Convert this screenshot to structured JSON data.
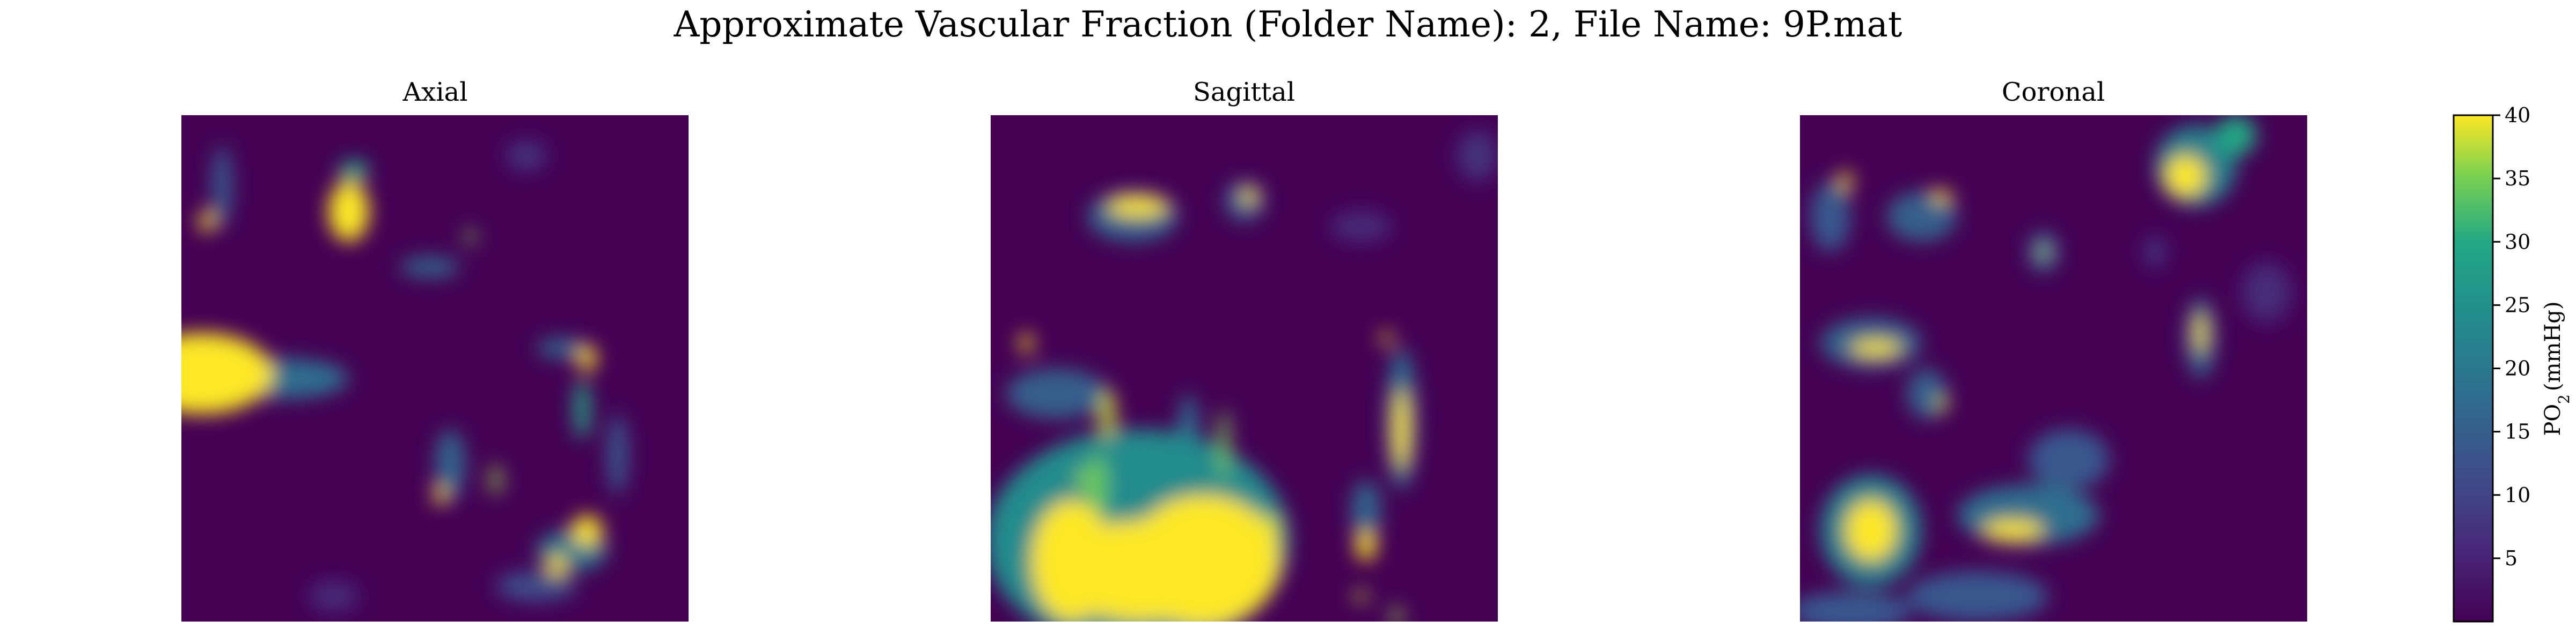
{
  "figure": {
    "title": "Approximate Vascular Fraction (Folder Name): 2, File Name: 9P.mat"
  },
  "chart_data": {
    "type": "heatmap",
    "panels": [
      {
        "title": "Axial",
        "blobs": [
          {
            "x": 0.33,
            "y": 0.19,
            "rx": 0.04,
            "ry": 0.06,
            "v": 40
          },
          {
            "x": 0.34,
            "y": 0.11,
            "rx": 0.03,
            "ry": 0.02,
            "v": 30
          },
          {
            "x": 0.04,
            "y": 0.51,
            "rx": 0.14,
            "ry": 0.08,
            "v": 40
          },
          {
            "x": 0.2,
            "y": 0.52,
            "rx": 0.13,
            "ry": 0.04,
            "v": 18
          },
          {
            "x": 0.05,
            "y": 0.21,
            "rx": 0.015,
            "ry": 0.02,
            "v": 40
          },
          {
            "x": 0.08,
            "y": 0.14,
            "rx": 0.02,
            "ry": 0.08,
            "v": 14
          },
          {
            "x": 0.57,
            "y": 0.24,
            "rx": 0.012,
            "ry": 0.012,
            "v": 35
          },
          {
            "x": 0.49,
            "y": 0.3,
            "rx": 0.06,
            "ry": 0.02,
            "v": 16
          },
          {
            "x": 0.8,
            "y": 0.48,
            "rx": 0.018,
            "ry": 0.025,
            "v": 40
          },
          {
            "x": 0.79,
            "y": 0.58,
            "rx": 0.015,
            "ry": 0.06,
            "v": 30
          },
          {
            "x": 0.75,
            "y": 0.46,
            "rx": 0.05,
            "ry": 0.02,
            "v": 16
          },
          {
            "x": 0.51,
            "y": 0.75,
            "rx": 0.012,
            "ry": 0.02,
            "v": 40
          },
          {
            "x": 0.62,
            "y": 0.72,
            "rx": 0.01,
            "ry": 0.03,
            "v": 36
          },
          {
            "x": 0.53,
            "y": 0.69,
            "rx": 0.03,
            "ry": 0.07,
            "v": 16
          },
          {
            "x": 0.8,
            "y": 0.82,
            "rx": 0.03,
            "ry": 0.03,
            "v": 40
          },
          {
            "x": 0.74,
            "y": 0.89,
            "rx": 0.02,
            "ry": 0.02,
            "v": 40
          },
          {
            "x": 0.77,
            "y": 0.86,
            "rx": 0.07,
            "ry": 0.04,
            "v": 20
          },
          {
            "x": 0.86,
            "y": 0.67,
            "rx": 0.02,
            "ry": 0.08,
            "v": 14
          },
          {
            "x": 0.7,
            "y": 0.93,
            "rx": 0.08,
            "ry": 0.03,
            "v": 12
          },
          {
            "x": 0.68,
            "y": 0.08,
            "rx": 0.04,
            "ry": 0.03,
            "v": 7
          },
          {
            "x": 0.3,
            "y": 0.95,
            "rx": 0.05,
            "ry": 0.03,
            "v": 6
          }
        ]
      },
      {
        "title": "Sagittal",
        "blobs": [
          {
            "x": 0.29,
            "y": 0.18,
            "rx": 0.06,
            "ry": 0.02,
            "v": 40
          },
          {
            "x": 0.28,
            "y": 0.2,
            "rx": 0.09,
            "ry": 0.05,
            "v": 16
          },
          {
            "x": 0.51,
            "y": 0.16,
            "rx": 0.015,
            "ry": 0.015,
            "v": 40
          },
          {
            "x": 0.5,
            "y": 0.17,
            "rx": 0.04,
            "ry": 0.04,
            "v": 14
          },
          {
            "x": 0.07,
            "y": 0.45,
            "rx": 0.012,
            "ry": 0.02,
            "v": 40
          },
          {
            "x": 0.13,
            "y": 0.55,
            "rx": 0.1,
            "ry": 0.05,
            "v": 15
          },
          {
            "x": 0.23,
            "y": 0.59,
            "rx": 0.015,
            "ry": 0.05,
            "v": 38
          },
          {
            "x": 0.46,
            "y": 0.65,
            "rx": 0.01,
            "ry": 0.07,
            "v": 35
          },
          {
            "x": 0.39,
            "y": 0.63,
            "rx": 0.02,
            "ry": 0.08,
            "v": 18
          },
          {
            "x": 0.78,
            "y": 0.44,
            "rx": 0.012,
            "ry": 0.012,
            "v": 40
          },
          {
            "x": 0.81,
            "y": 0.62,
            "rx": 0.015,
            "ry": 0.08,
            "v": 40
          },
          {
            "x": 0.81,
            "y": 0.6,
            "rx": 0.03,
            "ry": 0.14,
            "v": 18
          },
          {
            "x": 0.74,
            "y": 0.78,
            "rx": 0.03,
            "ry": 0.06,
            "v": 16
          },
          {
            "x": 0.74,
            "y": 0.85,
            "rx": 0.02,
            "ry": 0.03,
            "v": 40
          },
          {
            "x": 0.73,
            "y": 0.95,
            "rx": 0.012,
            "ry": 0.012,
            "v": 38
          },
          {
            "x": 0.8,
            "y": 0.99,
            "rx": 0.01,
            "ry": 0.02,
            "v": 36
          },
          {
            "x": 0.16,
            "y": 0.88,
            "rx": 0.08,
            "ry": 0.12,
            "v": 40
          },
          {
            "x": 0.42,
            "y": 0.88,
            "rx": 0.15,
            "ry": 0.13,
            "v": 40
          },
          {
            "x": 0.29,
            "y": 0.84,
            "rx": 0.3,
            "ry": 0.22,
            "v": 24
          },
          {
            "x": 0.21,
            "y": 0.73,
            "rx": 0.02,
            "ry": 0.06,
            "v": 34
          },
          {
            "x": 0.18,
            "y": 0.72,
            "rx": 0.01,
            "ry": 0.02,
            "v": 36
          },
          {
            "x": 0.55,
            "y": 0.82,
            "rx": 0.02,
            "ry": 0.03,
            "v": 38
          },
          {
            "x": 0.3,
            "y": 0.9,
            "rx": 0.18,
            "ry": 0.1,
            "v": 40
          },
          {
            "x": 0.73,
            "y": 0.22,
            "rx": 0.06,
            "ry": 0.03,
            "v": 6
          },
          {
            "x": 0.96,
            "y": 0.08,
            "rx": 0.04,
            "ry": 0.05,
            "v": 7
          }
        ]
      },
      {
        "title": "Coronal",
        "blobs": [
          {
            "x": 0.76,
            "y": 0.12,
            "rx": 0.04,
            "ry": 0.04,
            "v": 40
          },
          {
            "x": 0.78,
            "y": 0.1,
            "rx": 0.08,
            "ry": 0.08,
            "v": 22
          },
          {
            "x": 0.86,
            "y": 0.04,
            "rx": 0.04,
            "ry": 0.04,
            "v": 30
          },
          {
            "x": 0.09,
            "y": 0.13,
            "rx": 0.012,
            "ry": 0.02,
            "v": 40
          },
          {
            "x": 0.06,
            "y": 0.2,
            "rx": 0.04,
            "ry": 0.07,
            "v": 14
          },
          {
            "x": 0.28,
            "y": 0.16,
            "rx": 0.02,
            "ry": 0.012,
            "v": 40
          },
          {
            "x": 0.24,
            "y": 0.2,
            "rx": 0.07,
            "ry": 0.05,
            "v": 15
          },
          {
            "x": 0.48,
            "y": 0.27,
            "rx": 0.01,
            "ry": 0.01,
            "v": 38
          },
          {
            "x": 0.48,
            "y": 0.27,
            "rx": 0.03,
            "ry": 0.04,
            "v": 15
          },
          {
            "x": 0.15,
            "y": 0.46,
            "rx": 0.05,
            "ry": 0.015,
            "v": 40
          },
          {
            "x": 0.14,
            "y": 0.45,
            "rx": 0.1,
            "ry": 0.05,
            "v": 16
          },
          {
            "x": 0.28,
            "y": 0.57,
            "rx": 0.012,
            "ry": 0.015,
            "v": 38
          },
          {
            "x": 0.25,
            "y": 0.55,
            "rx": 0.04,
            "ry": 0.05,
            "v": 15
          },
          {
            "x": 0.79,
            "y": 0.43,
            "rx": 0.01,
            "ry": 0.04,
            "v": 40
          },
          {
            "x": 0.79,
            "y": 0.44,
            "rx": 0.03,
            "ry": 0.08,
            "v": 16
          },
          {
            "x": 0.14,
            "y": 0.82,
            "rx": 0.05,
            "ry": 0.06,
            "v": 40
          },
          {
            "x": 0.14,
            "y": 0.82,
            "rx": 0.1,
            "ry": 0.11,
            "v": 22
          },
          {
            "x": 0.42,
            "y": 0.82,
            "rx": 0.06,
            "ry": 0.02,
            "v": 40
          },
          {
            "x": 0.45,
            "y": 0.79,
            "rx": 0.14,
            "ry": 0.06,
            "v": 18
          },
          {
            "x": 0.53,
            "y": 0.68,
            "rx": 0.08,
            "ry": 0.06,
            "v": 14
          },
          {
            "x": 0.35,
            "y": 0.95,
            "rx": 0.14,
            "ry": 0.05,
            "v": 14
          },
          {
            "x": 0.1,
            "y": 0.98,
            "rx": 0.12,
            "ry": 0.04,
            "v": 14
          },
          {
            "x": 0.7,
            "y": 0.27,
            "rx": 0.02,
            "ry": 0.03,
            "v": 8
          },
          {
            "x": 0.92,
            "y": 0.35,
            "rx": 0.05,
            "ry": 0.06,
            "v": 6
          }
        ]
      }
    ],
    "colorbar": {
      "label_base": "PO",
      "label_sub": "2",
      "label_unit": "(mmHg)",
      "ticks": [
        5,
        10,
        15,
        20,
        25,
        30,
        35,
        40
      ],
      "tick_labels": [
        "5",
        "10",
        "15",
        "20",
        "25",
        "30",
        "35",
        "40"
      ],
      "vmin": 0,
      "vmax": 40,
      "colormap": "viridis"
    }
  }
}
